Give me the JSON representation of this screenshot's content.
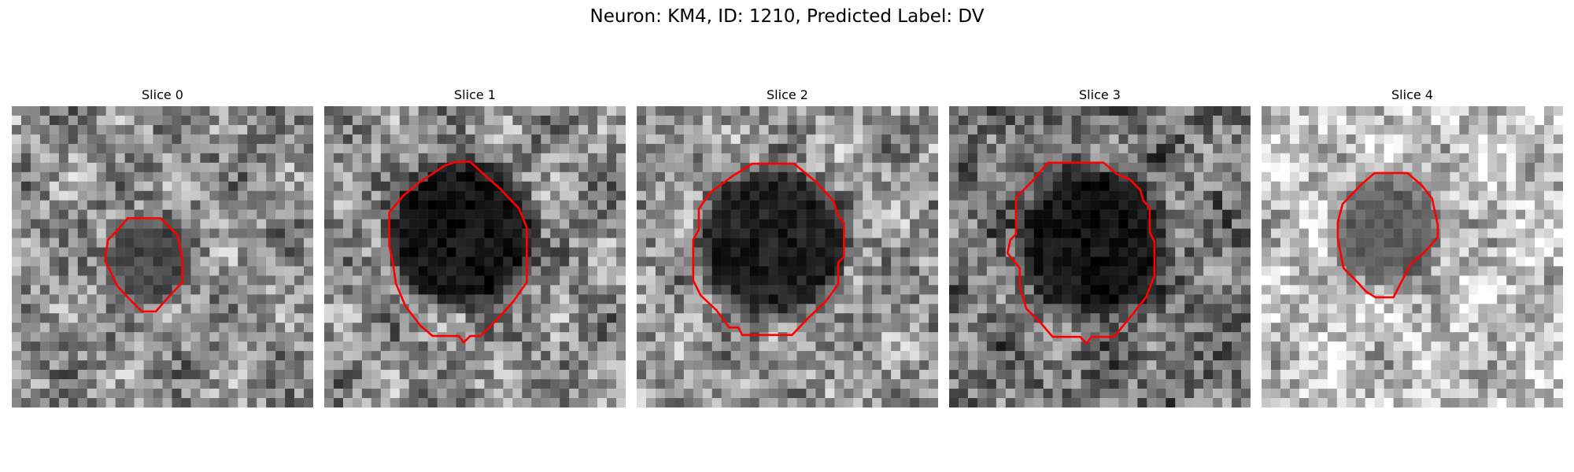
{
  "figure": {
    "title": "Neuron: KM4, ID: 1210, Predicted Label: DV"
  },
  "panels": [
    {
      "title": "Slice 0"
    },
    {
      "title": "Slice 1"
    },
    {
      "title": "Slice 2"
    },
    {
      "title": "Slice 3"
    },
    {
      "title": "Slice 4"
    }
  ],
  "colors": {
    "contour": "#ff0000",
    "colormap": "gray"
  }
}
